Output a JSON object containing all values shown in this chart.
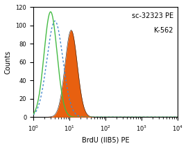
{
  "title_line1": "sc-32323 PE",
  "title_line2": "K-562",
  "xlabel": "BrdU (IIB5) PE",
  "ylabel": "Counts",
  "xlog_min": 0,
  "xlog_max": 4,
  "ylim": [
    0,
    120
  ],
  "yticks": [
    0,
    20,
    40,
    60,
    80,
    100,
    120
  ],
  "background_color": "#ffffff",
  "untreated_color": "#4488cc",
  "treated_color": "#e86010",
  "isotype_color": "#44bb44",
  "annotation_fontsize": 7,
  "axis_fontsize": 7,
  "tick_fontsize": 6,
  "isotype_peak_log": 0.48,
  "isotype_sigma": 0.18,
  "isotype_height": 115,
  "untreated_peak_log": 0.6,
  "untreated_sigma": 0.22,
  "untreated_height": 105,
  "treated_peak_log": 1.05,
  "treated_sigma": 0.17,
  "treated_height": 95
}
